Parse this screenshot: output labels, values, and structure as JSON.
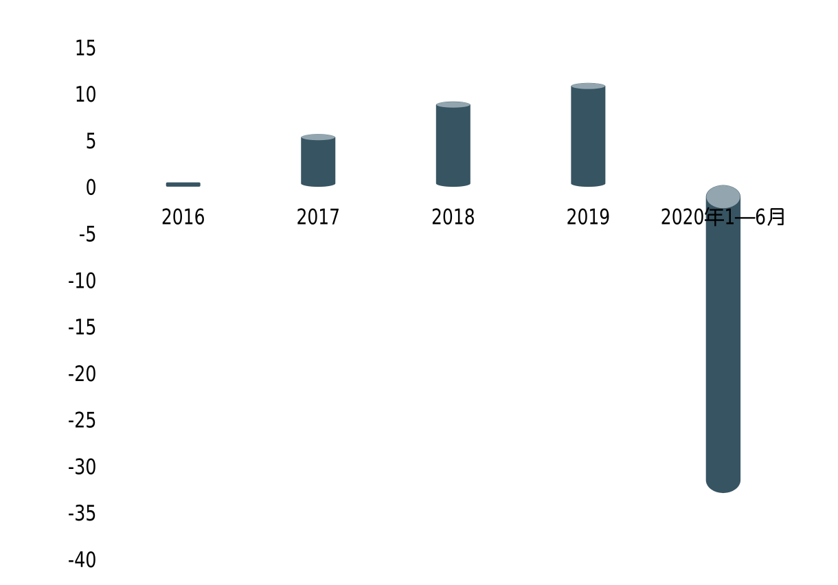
{
  "chart_data": {
    "type": "bar",
    "subtype": "3d-cylinder",
    "categories": [
      "2016",
      "2017",
      "2018",
      "2019",
      "2020年1—6月"
    ],
    "values": [
      0.3,
      5.3,
      8.8,
      10.8,
      -32.9
    ],
    "title": "",
    "xlabel": "",
    "ylabel": "",
    "ylim": [
      -40,
      15
    ],
    "yticks": [
      15,
      10,
      5,
      0,
      -5,
      -10,
      -15,
      -20,
      -25,
      -30,
      -35,
      -40
    ],
    "grid": false,
    "legend": false,
    "axis_lines": false,
    "background_color": "#ffffff",
    "bar_body_color": "#375462",
    "bar_cap_color": "#93a6b0",
    "text_color": "#000000"
  }
}
